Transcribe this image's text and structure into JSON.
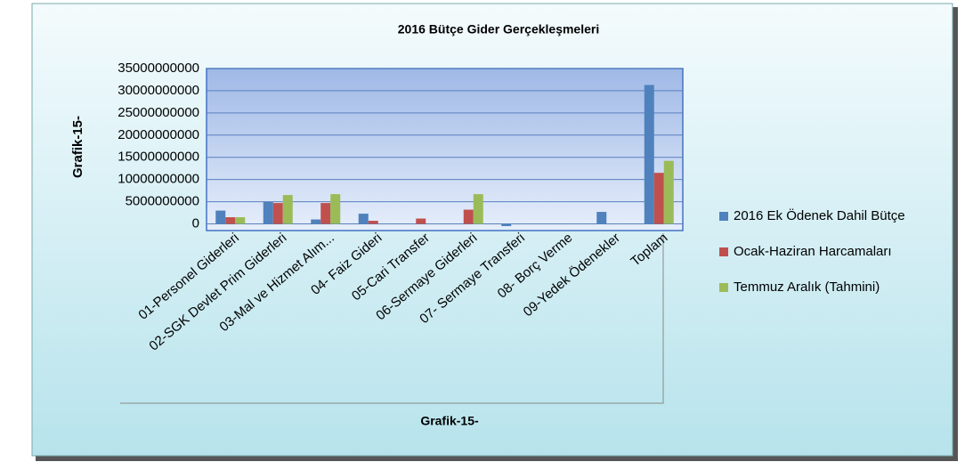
{
  "chart_data": {
    "type": "bar",
    "title": "2016 Bütçe Gider Gerçekleşmeleri",
    "y_label": "Grafik-15-",
    "x_label": "Grafik-15-",
    "categories": [
      "01-Personel Giderleri",
      "02-SGK Devlet Prim Giderleri",
      "03-Mal ve Hizmet Alım...",
      "04- Faiz Gideri",
      "05-Cari Transfer",
      "06-Sermaye Giderleri",
      "07- Sermaye Transferi",
      "08- Borç Verme",
      "09-Yedek Ödenekler",
      "Toplam"
    ],
    "series": [
      {
        "name": "2016 Ek Ödenek Dahil  Bütçe",
        "color": "#4f81bd",
        "values": [
          3000000000,
          5000000000,
          1000000000,
          2300000000,
          0,
          0,
          -500000000,
          0,
          2700000000,
          31300000000
        ]
      },
      {
        "name": "Ocak-Haziran Harcamaları",
        "color": "#c0504d",
        "values": [
          1500000000,
          4700000000,
          4700000000,
          700000000,
          1200000000,
          3200000000,
          0,
          0,
          0,
          11500000000
        ]
      },
      {
        "name": "Temmuz  Aralık (Tahmini)",
        "color": "#9bbb59",
        "values": [
          1500000000,
          6500000000,
          6700000000,
          0,
          0,
          6700000000,
          0,
          0,
          0,
          14200000000
        ]
      }
    ],
    "ylim": [
      -1500000000,
      35000000000
    ],
    "yticks": [
      0,
      5000000000,
      10000000000,
      15000000000,
      20000000000,
      25000000000,
      30000000000,
      35000000000
    ],
    "grid": true,
    "legend": "right"
  }
}
